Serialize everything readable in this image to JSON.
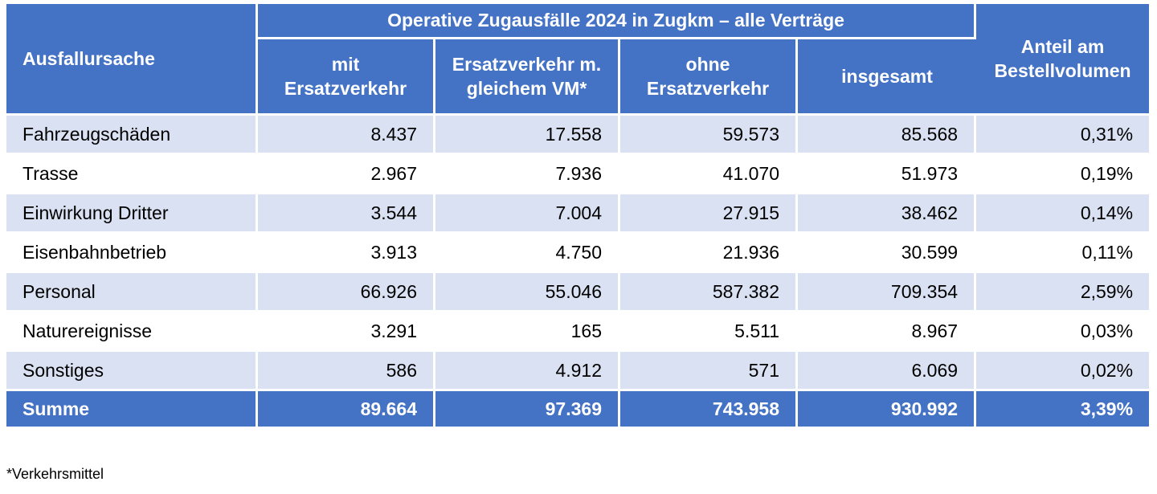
{
  "header": {
    "row_label": "Ausfallursache",
    "group_title": "Operative Zugausfälle 2024 in Zugkm – alle Verträge",
    "columns": [
      {
        "line1": "mit",
        "line2": "Ersatzverkehr"
      },
      {
        "line1": "Ersatzverkehr m.",
        "line2": "gleichem VM*"
      },
      {
        "line1": "ohne",
        "line2": "Ersatzverkehr"
      },
      {
        "line1": "insgesamt",
        "line2": ""
      }
    ],
    "share": {
      "line1": "Anteil am",
      "line2": "Bestellvolumen"
    }
  },
  "rows": [
    {
      "label": "Fahrzeugschäden",
      "mit": "8.437",
      "gleich": "17.558",
      "ohne": "59.573",
      "gesamt": "85.568",
      "anteil": "0,31%"
    },
    {
      "label": "Trasse",
      "mit": "2.967",
      "gleich": "7.936",
      "ohne": "41.070",
      "gesamt": "51.973",
      "anteil": "0,19%"
    },
    {
      "label": "Einwirkung Dritter",
      "mit": "3.544",
      "gleich": "7.004",
      "ohne": "27.915",
      "gesamt": "38.462",
      "anteil": "0,14%"
    },
    {
      "label": "Eisenbahnbetrieb",
      "mit": "3.913",
      "gleich": "4.750",
      "ohne": "21.936",
      "gesamt": "30.599",
      "anteil": "0,11%"
    },
    {
      "label": "Personal",
      "mit": "66.926",
      "gleich": "55.046",
      "ohne": "587.382",
      "gesamt": "709.354",
      "anteil": "2,59%"
    },
    {
      "label": "Naturereignisse",
      "mit": "3.291",
      "gleich": "165",
      "ohne": "5.511",
      "gesamt": "8.967",
      "anteil": "0,03%"
    },
    {
      "label": "Sonstiges",
      "mit": "586",
      "gleich": "4.912",
      "ohne": "571",
      "gesamt": "6.069",
      "anteil": "0,02%"
    }
  ],
  "sum": {
    "label": "Summe",
    "mit": "89.664",
    "gleich": "97.369",
    "ohne": "743.958",
    "gesamt": "930.992",
    "anteil": "3,39%"
  },
  "footnote": "*Verkehrsmittel",
  "colors": {
    "header_bg": "#4472c4",
    "band_bg": "#d9e1f2",
    "text_light": "#ffffff"
  }
}
